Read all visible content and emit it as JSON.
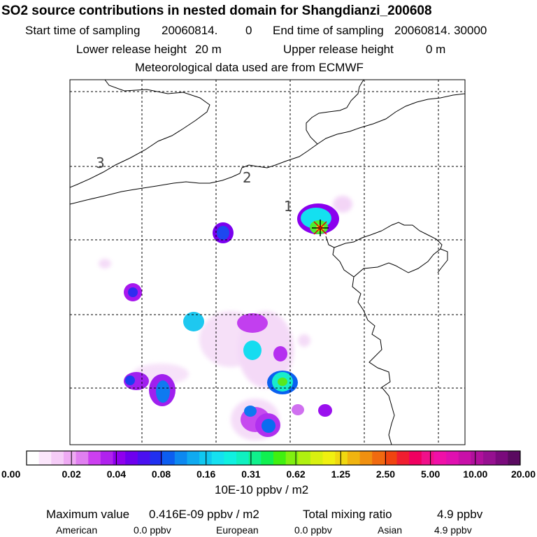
{
  "header": {
    "title": "SO2 source contributions in nested domain for Shangdianzi_200608",
    "start_label": "Start time of sampling",
    "start_value": "20060814.",
    "start_hour": "0",
    "end_label": "End time of sampling",
    "end_value": "20060814. 30000",
    "lower_label": "Lower release height",
    "lower_value": "20 m",
    "upper_label": "Upper release height",
    "upper_value": "0 m",
    "met_note": "Meteorological data used are from ECMWF"
  },
  "map": {
    "region_labels": [
      "1",
      "2",
      "3"
    ]
  },
  "colorbar": {
    "tick_labels": [
      "0.00",
      "0.02",
      "0.04",
      "0.08",
      "0.16",
      "0.31",
      "0.62",
      "1.25",
      "2.50",
      "5.00",
      "10.00",
      "20.00"
    ],
    "unit_label": "10E-10 ppbv / m2",
    "colors": [
      "#ffffff",
      "#fbe6fb",
      "#f5ccf7",
      "#eeaaf3",
      "#e07ff0",
      "#cc3ff0",
      "#b022ee",
      "#8f00ee",
      "#6e00ee",
      "#4a10f0",
      "#2030f0",
      "#0c5ef0",
      "#0d88f0",
      "#10aaf0",
      "#10c8f0",
      "#15e0f0",
      "#10f0e0",
      "#10f0c0",
      "#10f08c",
      "#10f050",
      "#40f010",
      "#80f010",
      "#b0f010",
      "#d8f010",
      "#f0f010",
      "#f0d810",
      "#f0b410",
      "#f09010",
      "#f06a10",
      "#f04410",
      "#f01e30",
      "#f00060",
      "#f0108a",
      "#f010a8",
      "#e010b0",
      "#c810a8",
      "#b0109c",
      "#961090",
      "#7a0a7c",
      "#5a0a60"
    ]
  },
  "footer": {
    "max_label": "Maximum value",
    "max_value": "0.416E-09 ppbv / m2",
    "total_label": "Total mixing ratio",
    "total_value": "4.9 ppbv",
    "american_label": "American",
    "american_value": "0.0 ppbv",
    "european_label": "European",
    "european_value": "0.0 ppbv",
    "asian_label": "Asian",
    "asian_value": "4.9 ppbv"
  },
  "chart_data": {
    "type": "heatmap",
    "title": "SO2 source contributions in nested domain for Shangdianzi_200608",
    "colorbar_unit": "10E-10 ppbv / m2",
    "colorbar_ticks": [
      0.0,
      0.02,
      0.04,
      0.08,
      0.16,
      0.31,
      0.62,
      1.25,
      2.5,
      5.0,
      10.0,
      20.0
    ],
    "maximum_value": "0.416E-09 ppbv / m2",
    "total_mixing_ratio_ppbv": 4.9,
    "contributions_ppbv": {
      "American": 0.0,
      "European": 0.0,
      "Asian": 4.9
    },
    "receptor_marker": "star"
  }
}
